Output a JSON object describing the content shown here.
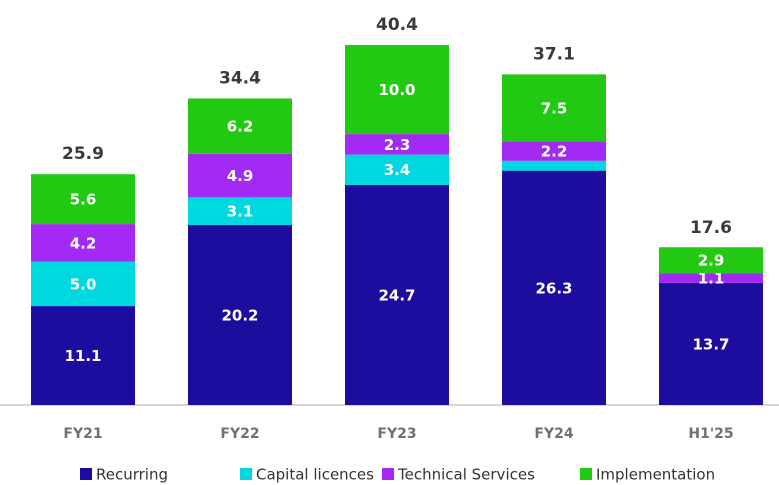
{
  "chart_data": {
    "type": "stacked_bar",
    "categories": [
      "FY21",
      "FY22",
      "FY23",
      "FY24",
      "H1'25"
    ],
    "series": [
      {
        "name": "Recurring",
        "color": "#1d0d9e",
        "values": [
          11.1,
          20.2,
          24.7,
          26.3,
          13.7
        ],
        "value_labels": [
          "11.1",
          "20.2",
          "24.7",
          "26.3",
          "13.7"
        ]
      },
      {
        "name": "Capital licences",
        "color": "#00d8e0",
        "values": [
          5.0,
          3.1,
          3.4,
          1.1,
          0
        ],
        "value_labels": [
          "5.0",
          "3.1",
          "3.4",
          null,
          null
        ]
      },
      {
        "name": "Technical Services",
        "color": "#a22af2",
        "values": [
          4.2,
          4.9,
          2.3,
          2.2,
          1.1
        ],
        "value_labels": [
          "4.2",
          "4.9",
          "2.3",
          "2.2",
          "1.1"
        ]
      },
      {
        "name": "Implementation",
        "color": "#22c912",
        "values": [
          5.6,
          6.2,
          10.0,
          7.5,
          2.9
        ],
        "value_labels": [
          "5.6",
          "6.2",
          "10.0",
          "7.5",
          "2.9"
        ]
      }
    ],
    "totals": [
      25.9,
      34.4,
      40.4,
      37.1,
      17.6
    ],
    "ylim": [
      0,
      45
    ],
    "legend": "bottom"
  }
}
